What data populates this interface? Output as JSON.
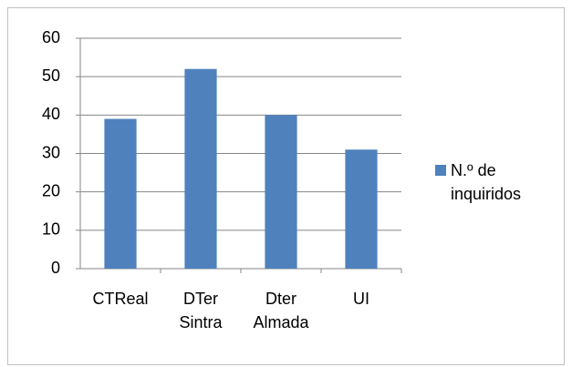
{
  "chart_data": {
    "type": "bar",
    "categories": [
      "CTReal",
      "DTer Sintra",
      "Dter Almada",
      "UI"
    ],
    "series": [
      {
        "name": "N.º de inquiridos",
        "color": "#4f81bd",
        "values": [
          39,
          52,
          40,
          31
        ]
      }
    ],
    "ylim": [
      0,
      60
    ],
    "yticks": [
      0,
      10,
      20,
      30,
      40,
      50,
      60
    ],
    "grid": true,
    "legend": "right"
  }
}
